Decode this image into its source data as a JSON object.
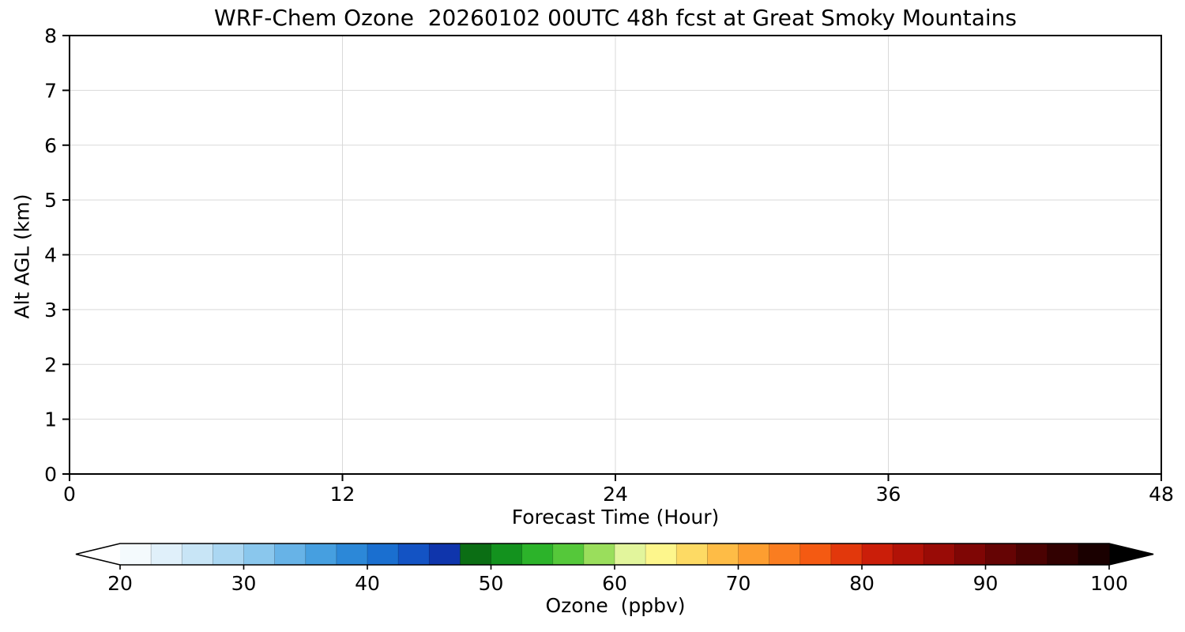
{
  "chart_data": {
    "type": "heatmap",
    "title": "WRF-Chem Ozone  20260102 00UTC 48h fcst at Great Smoky Mountains",
    "xlabel": "Forecast Time (Hour)",
    "ylabel": "Alt AGL (km)",
    "xlim": [
      0,
      48
    ],
    "ylim": [
      0,
      8
    ],
    "x_ticks": [
      0,
      12,
      24,
      36,
      48
    ],
    "y_ticks": [
      0,
      1,
      2,
      3,
      4,
      5,
      6,
      7,
      8
    ],
    "grid": true,
    "values": [],
    "colorbar": {
      "label": "Ozone  (ppbv)",
      "ticks": [
        20,
        30,
        40,
        50,
        60,
        70,
        80,
        90,
        100
      ],
      "vmin": 20,
      "vmax": 100,
      "segment_step": 2.5,
      "under_color": "#ffffff",
      "over_color": "#000000",
      "segment_colors": [
        "#f4fafd",
        "#e0f0fa",
        "#c8e5f6",
        "#abd7f2",
        "#8ac7ed",
        "#67b3e7",
        "#469fe0",
        "#2c88d8",
        "#1a6fd0",
        "#1353c4",
        "#0f35ac",
        "#0b6e14",
        "#13921e",
        "#2cb32a",
        "#55c83a",
        "#9ade5c",
        "#e2f59c",
        "#fdf68c",
        "#fdda64",
        "#febc46",
        "#fd9e30",
        "#fa7d20",
        "#f45a12",
        "#e2380c",
        "#cb1e09",
        "#b21207",
        "#990b06",
        "#7f0605",
        "#650404",
        "#4b0202",
        "#320101",
        "#1a0000"
      ]
    },
    "layout_hints": {
      "grid_color": "#d9d9d9",
      "axis_color": "#000000",
      "plot_background": "#ffffff"
    }
  }
}
